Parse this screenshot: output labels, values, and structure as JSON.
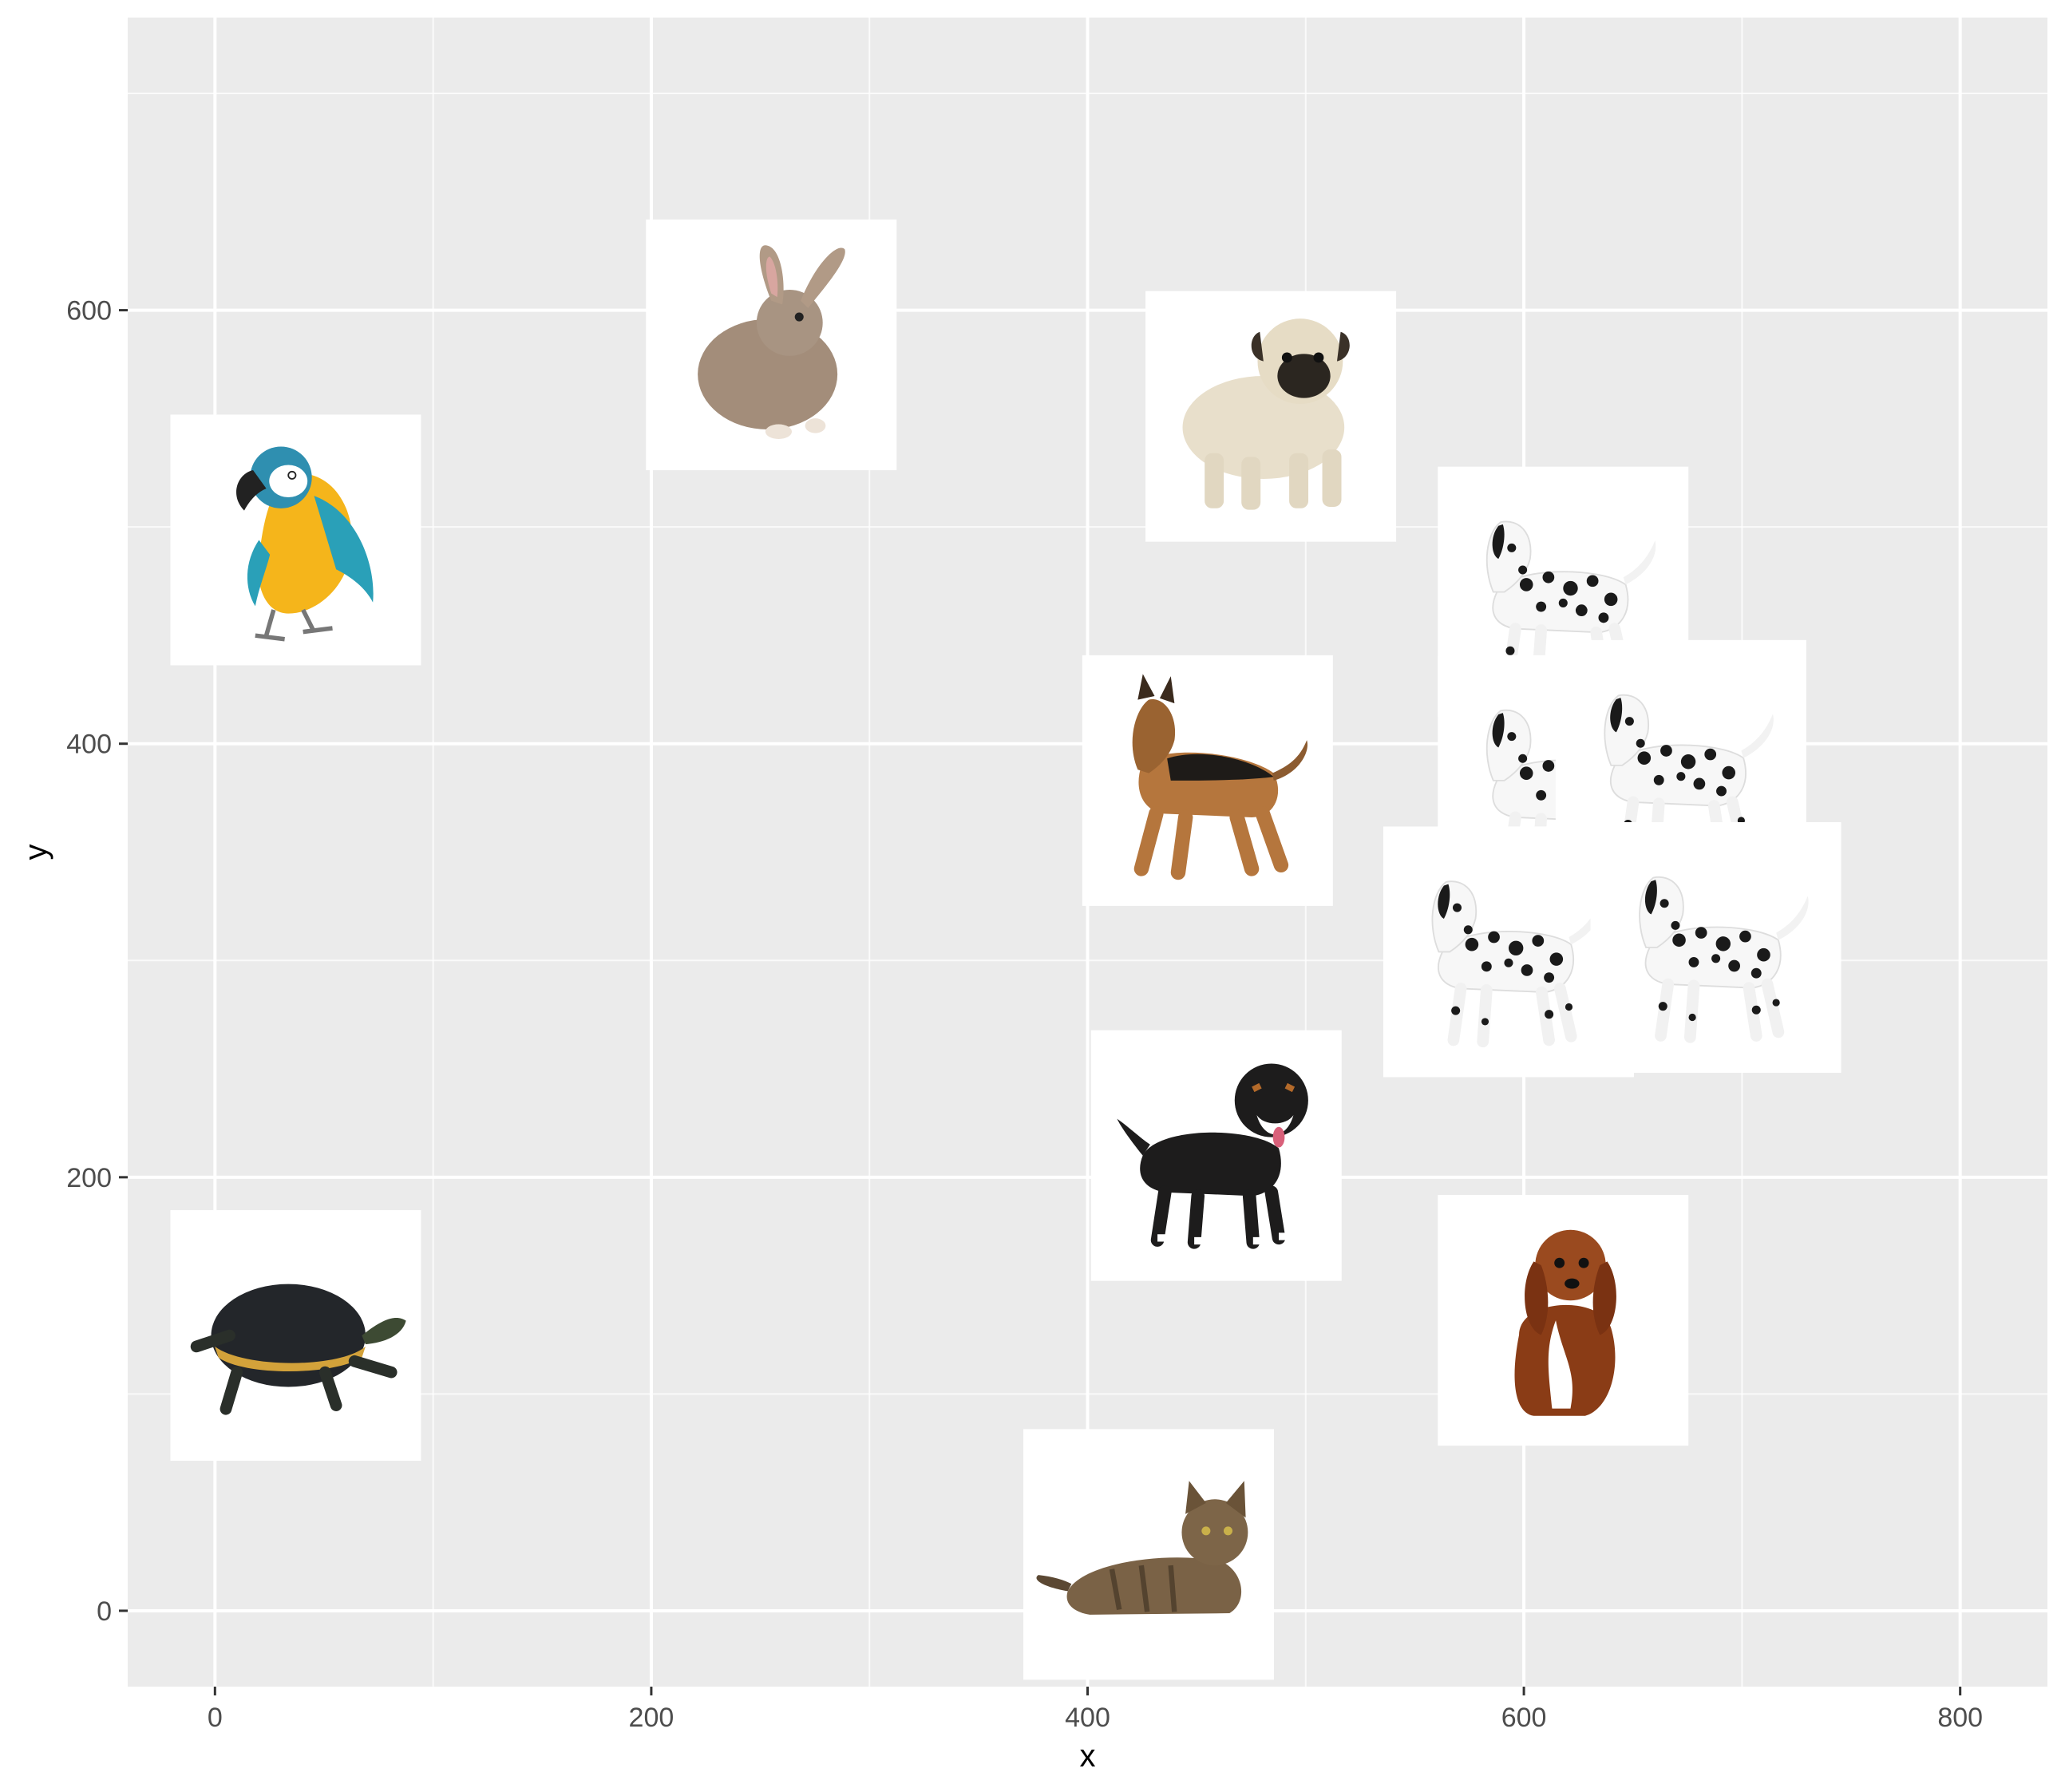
{
  "chart_data": {
    "type": "scatter",
    "title": "",
    "xlabel": "x",
    "ylabel": "y",
    "xlim": [
      -40,
      840
    ],
    "ylim": [
      -35,
      735
    ],
    "x_ticks": [
      0,
      200,
      400,
      600,
      800
    ],
    "y_ticks": [
      0,
      200,
      400,
      600
    ],
    "x_tick_labels": [
      "0",
      "200",
      "400",
      "600",
      "800"
    ],
    "y_tick_labels": [
      "0",
      "200",
      "400",
      "600"
    ],
    "grid": true,
    "marker": "animal-photo",
    "points": [
      {
        "x": 37,
        "y": 494,
        "icon": "parrot-icon"
      },
      {
        "x": 255,
        "y": 584,
        "icon": "rabbit-icon"
      },
      {
        "x": 484,
        "y": 551,
        "icon": "pug-icon"
      },
      {
        "x": 455,
        "y": 383,
        "icon": "german-shepherd-icon"
      },
      {
        "x": 459,
        "y": 210,
        "icon": "bernese-mix-dog-icon"
      },
      {
        "x": 37,
        "y": 127,
        "icon": "turtle-icon"
      },
      {
        "x": 428,
        "y": 26,
        "icon": "tabby-cat-icon"
      },
      {
        "x": 618,
        "y": 134,
        "icon": "spaniel-icon"
      },
      {
        "x": 618,
        "y": 470,
        "icon": "dalmatian-icon"
      },
      {
        "x": 618,
        "y": 383,
        "icon": "dalmatian-icon"
      },
      {
        "x": 672,
        "y": 390,
        "icon": "dalmatian-icon"
      },
      {
        "x": 593,
        "y": 304,
        "icon": "dalmatian-icon"
      },
      {
        "x": 688,
        "y": 306,
        "icon": "dalmatian-icon"
      }
    ]
  },
  "colors": {
    "panel_background": "#ebebeb",
    "grid_major": "#ffffff",
    "grid_minor": "#f7f7f7",
    "tick_label": "#4d4d4d",
    "axis_title": "#000000"
  }
}
